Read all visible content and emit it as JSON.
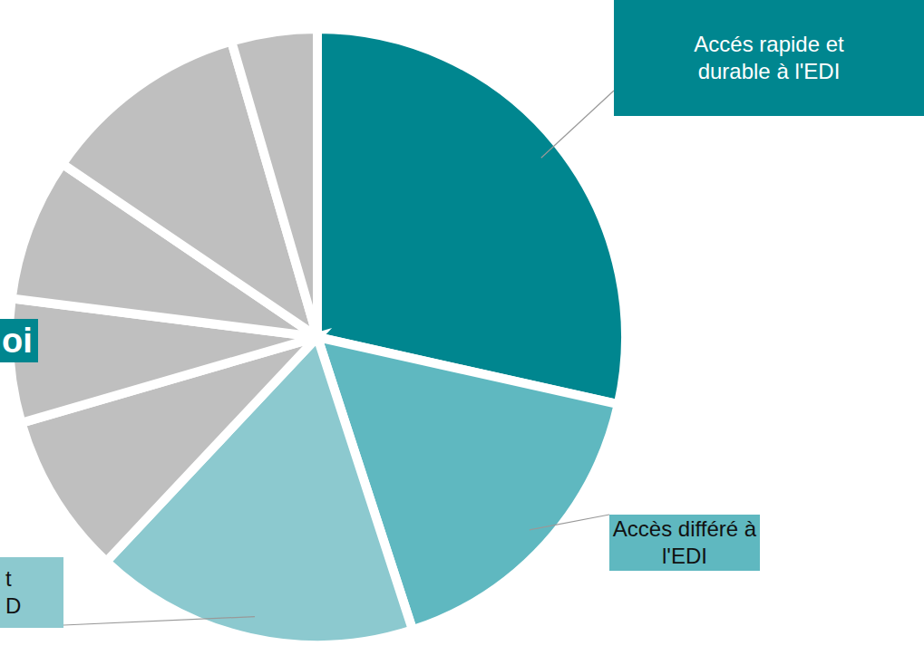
{
  "chart_data": {
    "type": "pie",
    "categories": [
      "Accés rapide et durable à l'EDI",
      "Accès différé à l'EDI",
      "t\nD",
      null,
      null,
      null,
      null,
      null
    ],
    "values": [
      28.5,
      16.5,
      17,
      8.5,
      6.5,
      7.5,
      11,
      4.5
    ],
    "colors": [
      "#00868f",
      "#5fb8c0",
      "#8cc9cf",
      "#bfbfbf",
      "#bfbfbf",
      "#bfbfbf",
      "#bfbfbf",
      "#bfbfbf"
    ],
    "annotations": [
      "oi"
    ]
  }
}
